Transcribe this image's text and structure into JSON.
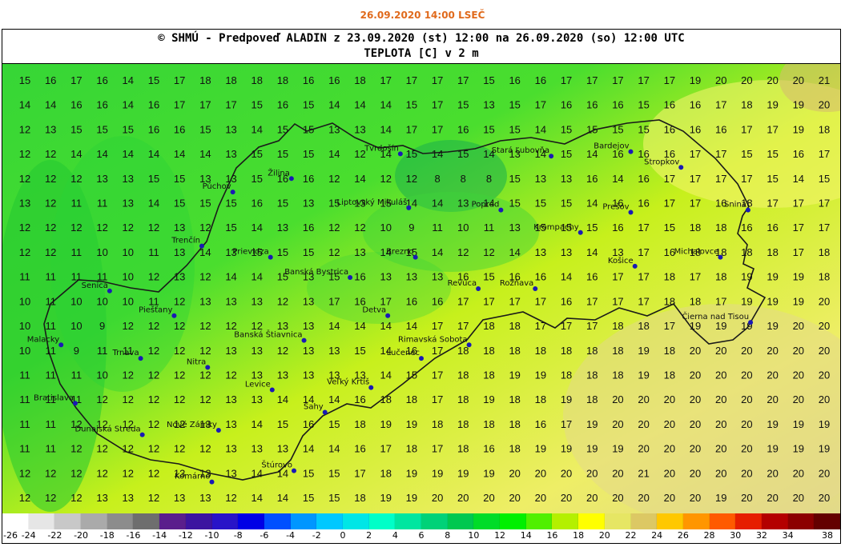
{
  "timestamp": "26.09.2020 14:00 LSEČ",
  "header": {
    "line1": "© SHMÚ - Predpoveď ALADIN z 23.09.2020 (st) 12:00 na 26.09.2020 (so) 12:00 UTC",
    "line2": "TEPLOTA [C] v 2 m"
  },
  "legend": {
    "ticks": [
      "-26",
      "-24",
      "-22",
      "-20",
      "-18",
      "-16",
      "-14",
      "-12",
      "-10",
      "-8",
      "-6",
      "-4",
      "-2",
      "0",
      "2",
      "4",
      "6",
      "8",
      "10",
      "12",
      "14",
      "16",
      "18",
      "20",
      "22",
      "24",
      "26",
      "28",
      "30",
      "32",
      "34",
      "38"
    ],
    "colors": [
      "#ffffff",
      "#e6e6e6",
      "#c8c8c8",
      "#aaaaaa",
      "#8c8c8c",
      "#6e6e6e",
      "#5a1e8c",
      "#3c14a0",
      "#2814c8",
      "#0000e6",
      "#0050ff",
      "#0096ff",
      "#00c8ff",
      "#00e6e6",
      "#00ffc8",
      "#00e6a0",
      "#00d278",
      "#00c850",
      "#00dc28",
      "#00f000",
      "#50f000",
      "#b4f000",
      "#ffff00",
      "#e6e664",
      "#dcc864",
      "#ffc800",
      "#ff9600",
      "#ff5a00",
      "#e61e00",
      "#b40000",
      "#8c0000",
      "#640000"
    ]
  },
  "temperature_grid": [
    [
      15,
      16,
      17,
      16,
      14,
      15,
      17,
      18,
      18,
      18,
      18,
      16,
      16,
      18,
      17,
      17,
      17,
      17,
      15,
      16,
      16,
      17,
      17,
      17,
      17,
      17,
      19,
      20,
      20,
      20,
      20,
      21
    ],
    [
      14,
      14,
      16,
      16,
      14,
      16,
      17,
      17,
      17,
      15,
      16,
      15,
      14,
      14,
      14,
      15,
      17,
      15,
      13,
      15,
      17,
      16,
      16,
      16,
      15,
      16,
      16,
      17,
      18,
      19,
      19,
      20
    ],
    [
      12,
      13,
      15,
      15,
      15,
      16,
      16,
      15,
      13,
      14,
      15,
      15,
      13,
      13,
      14,
      17,
      17,
      16,
      15,
      15,
      14,
      15,
      15,
      15,
      15,
      16,
      16,
      16,
      17,
      17,
      19,
      18
    ],
    [
      12,
      12,
      14,
      14,
      14,
      14,
      14,
      14,
      13,
      15,
      15,
      15,
      14,
      12,
      14,
      15,
      14,
      15,
      14,
      13,
      14,
      15,
      14,
      16,
      16,
      16,
      17,
      17,
      15,
      15,
      16,
      17
    ],
    [
      12,
      12,
      12,
      13,
      13,
      15,
      15,
      13,
      13,
      15,
      16,
      16,
      12,
      14,
      12,
      12,
      8,
      8,
      8,
      15,
      13,
      13,
      16,
      14,
      16,
      17,
      17,
      17,
      17,
      15,
      14,
      15
    ],
    [
      13,
      12,
      11,
      11,
      13,
      14,
      15,
      15,
      15,
      16,
      15,
      13,
      15,
      13,
      15,
      14,
      14,
      13,
      14,
      15,
      15,
      15,
      14,
      16,
      16,
      17,
      17,
      16,
      18,
      17,
      17,
      17
    ],
    [
      12,
      12,
      12,
      12,
      12,
      12,
      13,
      12,
      15,
      14,
      13,
      16,
      12,
      12,
      10,
      9,
      11,
      10,
      11,
      13,
      15,
      15,
      15,
      16,
      17,
      15,
      18,
      18,
      16,
      16,
      17,
      17
    ],
    [
      12,
      12,
      11,
      10,
      10,
      11,
      13,
      14,
      13,
      15,
      15,
      15,
      12,
      13,
      14,
      15,
      14,
      12,
      12,
      14,
      13,
      13,
      14,
      13,
      17,
      16,
      18,
      18,
      18,
      18,
      17,
      18
    ],
    [
      11,
      11,
      11,
      11,
      10,
      12,
      13,
      12,
      14,
      14,
      15,
      13,
      15,
      16,
      13,
      13,
      13,
      16,
      15,
      16,
      16,
      14,
      16,
      17,
      17,
      18,
      17,
      18,
      19,
      19,
      19,
      18
    ],
    [
      10,
      11,
      10,
      10,
      10,
      11,
      12,
      13,
      13,
      13,
      12,
      13,
      17,
      16,
      17,
      16,
      16,
      17,
      17,
      17,
      17,
      16,
      17,
      17,
      17,
      18,
      18,
      17,
      19,
      19,
      19,
      20
    ],
    [
      10,
      11,
      10,
      9,
      12,
      12,
      12,
      12,
      12,
      12,
      13,
      13,
      14,
      14,
      14,
      14,
      17,
      17,
      18,
      18,
      17,
      17,
      17,
      18,
      18,
      17,
      19,
      19,
      19,
      19,
      20,
      20
    ],
    [
      10,
      11,
      9,
      11,
      11,
      12,
      12,
      12,
      13,
      13,
      12,
      13,
      13,
      15,
      14,
      16,
      17,
      18,
      18,
      18,
      18,
      18,
      18,
      18,
      19,
      18,
      20,
      20,
      20,
      20,
      20,
      20
    ],
    [
      11,
      11,
      11,
      10,
      12,
      12,
      12,
      12,
      12,
      13,
      13,
      13,
      13,
      13,
      14,
      15,
      17,
      18,
      18,
      19,
      19,
      18,
      18,
      18,
      19,
      18,
      20,
      20,
      20,
      20,
      20,
      20
    ],
    [
      11,
      11,
      11,
      12,
      12,
      12,
      12,
      12,
      13,
      13,
      14,
      14,
      14,
      16,
      18,
      18,
      17,
      18,
      19,
      18,
      18,
      19,
      18,
      20,
      20,
      20,
      20,
      20,
      20,
      20,
      20,
      20
    ],
    [
      11,
      11,
      12,
      12,
      12,
      12,
      12,
      13,
      13,
      14,
      15,
      16,
      15,
      18,
      19,
      19,
      18,
      18,
      18,
      18,
      16,
      17,
      19,
      20,
      20,
      20,
      20,
      20,
      20,
      19,
      19,
      19
    ],
    [
      11,
      11,
      12,
      12,
      12,
      12,
      12,
      12,
      13,
      13,
      13,
      14,
      14,
      16,
      17,
      18,
      17,
      18,
      16,
      18,
      19,
      19,
      19,
      19,
      20,
      20,
      20,
      20,
      20,
      19,
      19,
      19
    ],
    [
      12,
      12,
      12,
      12,
      12,
      12,
      13,
      13,
      13,
      14,
      14,
      15,
      15,
      17,
      18,
      19,
      19,
      19,
      19,
      20,
      20,
      20,
      20,
      20,
      21,
      20,
      20,
      20,
      20,
      20,
      20,
      20
    ],
    [
      12,
      12,
      12,
      13,
      13,
      12,
      13,
      13,
      12,
      14,
      14,
      15,
      15,
      18,
      19,
      19,
      20,
      20,
      20,
      20,
      20,
      20,
      20,
      20,
      20,
      20,
      20,
      19,
      20,
      20,
      20,
      20
    ]
  ],
  "cities": [
    {
      "name": "Tvrdošín",
      "lon": 0.475,
      "lat": 0.2
    },
    {
      "name": "Stará Ľubovňa",
      "lon": 0.655,
      "lat": 0.205
    },
    {
      "name": "Bardejov",
      "lon": 0.75,
      "lat": 0.195
    },
    {
      "name": "Stropkov",
      "lon": 0.81,
      "lat": 0.23
    },
    {
      "name": "Žilina",
      "lon": 0.345,
      "lat": 0.255
    },
    {
      "name": "Púchov",
      "lon": 0.275,
      "lat": 0.285
    },
    {
      "name": "Liptovský Mikuláš",
      "lon": 0.485,
      "lat": 0.32
    },
    {
      "name": "Poprad",
      "lon": 0.595,
      "lat": 0.325
    },
    {
      "name": "Prešov",
      "lon": 0.75,
      "lat": 0.33
    },
    {
      "name": "Snina",
      "lon": 0.89,
      "lat": 0.325
    },
    {
      "name": "Krompachy",
      "lon": 0.69,
      "lat": 0.375
    },
    {
      "name": "Trenčín",
      "lon": 0.238,
      "lat": 0.405
    },
    {
      "name": "Prievidza",
      "lon": 0.32,
      "lat": 0.43
    },
    {
      "name": "Brezno",
      "lon": 0.493,
      "lat": 0.43
    },
    {
      "name": "Košice",
      "lon": 0.755,
      "lat": 0.45
    },
    {
      "name": "Michalovce",
      "lon": 0.857,
      "lat": 0.43
    },
    {
      "name": "Banská Bystrica",
      "lon": 0.415,
      "lat": 0.475
    },
    {
      "name": "Senica",
      "lon": 0.128,
      "lat": 0.505
    },
    {
      "name": "Revúca",
      "lon": 0.568,
      "lat": 0.5
    },
    {
      "name": "Rožňava",
      "lon": 0.636,
      "lat": 0.5
    },
    {
      "name": "Piešťany",
      "lon": 0.205,
      "lat": 0.56
    },
    {
      "name": "Detva",
      "lon": 0.46,
      "lat": 0.56
    },
    {
      "name": "Čierna nad Tisou",
      "lon": 0.893,
      "lat": 0.575
    },
    {
      "name": "Banská Štiavnica",
      "lon": 0.36,
      "lat": 0.615
    },
    {
      "name": "Rimavská Sobota",
      "lon": 0.557,
      "lat": 0.625
    },
    {
      "name": "Malacky",
      "lon": 0.07,
      "lat": 0.625
    },
    {
      "name": "Trnava",
      "lon": 0.165,
      "lat": 0.655
    },
    {
      "name": "Lučenec",
      "lon": 0.5,
      "lat": 0.655
    },
    {
      "name": "Nitra",
      "lon": 0.245,
      "lat": 0.675
    },
    {
      "name": "Levice",
      "lon": 0.322,
      "lat": 0.725
    },
    {
      "name": "Veľký Krtíš",
      "lon": 0.44,
      "lat": 0.72
    },
    {
      "name": "Bratislava",
      "lon": 0.087,
      "lat": 0.755
    },
    {
      "name": "Šahy",
      "lon": 0.385,
      "lat": 0.775
    },
    {
      "name": "Dunajská Streda",
      "lon": 0.167,
      "lat": 0.825
    },
    {
      "name": "Nové Zámky",
      "lon": 0.258,
      "lat": 0.815
    },
    {
      "name": "Štúrovo",
      "lon": 0.348,
      "lat": 0.905
    },
    {
      "name": "Komárno",
      "lon": 0.25,
      "lat": 0.93
    }
  ]
}
